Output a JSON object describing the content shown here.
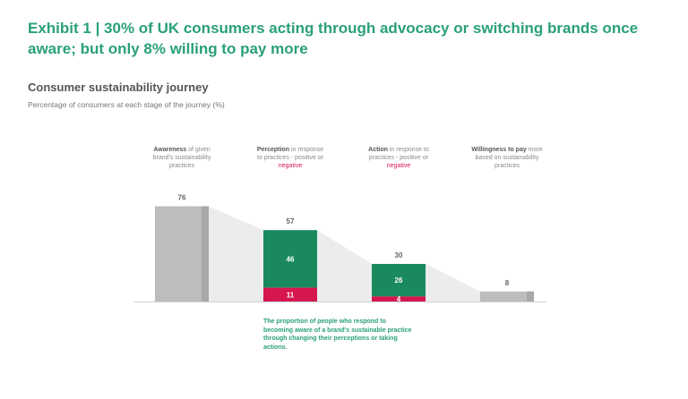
{
  "header": {
    "title": "Exhibit 1 | 30% of UK consumers acting through advocacy or switching brands once aware; but only 8% willing to pay more",
    "subtitle": "Consumer sustainability journey",
    "subtitle_note": "Percentage of consumers at each stage of the journey (%)"
  },
  "stages": [
    {
      "bold": "Awareness",
      "text": " of given brand's sustainability practices",
      "neg": ""
    },
    {
      "bold": "Perception",
      "text": " in response to practices - positive or ",
      "neg": "negative"
    },
    {
      "bold": "Action",
      "text": " in response to practices  - positive or ",
      "neg": "negative"
    },
    {
      "bold": "Willingness to pay",
      "text": " more based on sustainability practices",
      "neg": ""
    }
  ],
  "note": "The proportion of people who respond to becoming aware of a brand's sustainable practice through changing their perceptions or taking actions.",
  "chart_data": {
    "type": "bar",
    "categories": [
      "Awareness",
      "Perception",
      "Action",
      "Willingness to pay"
    ],
    "totals": [
      76,
      57,
      30,
      8
    ],
    "series": [
      {
        "values": [
          76,
          46,
          26,
          8
        ],
        "color": "#bdbdbd"
      },
      {
        "values": [
          0,
          11,
          4,
          0
        ],
        "color": "#d6164e"
      }
    ],
    "bar_colors": {
      "total": "#bdbdbd",
      "positive": "#1a8a5e",
      "negative": "#d6164e"
    },
    "ylim": [
      0,
      80
    ]
  }
}
